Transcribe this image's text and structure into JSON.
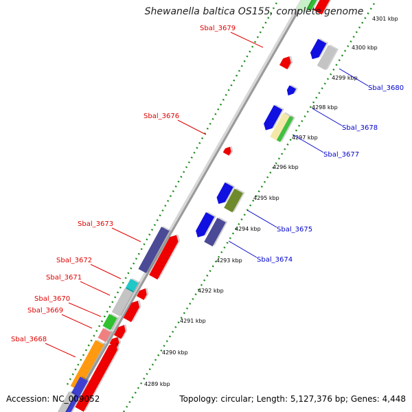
{
  "title": "Shewanella baltica OS155, complete genome",
  "footer": {
    "accession": "Accession: NC_009052",
    "summary": "Topology: circular; Length: 5,127,376 bp; Genes: 4,448"
  },
  "colors": {
    "backbone": "#9a9a9a",
    "tick_dots": "#1a8a1a",
    "forward_label": "#e00000",
    "reverse_label": "#0000cc"
  },
  "axis": {
    "ticks": [
      {
        "label": "4289 kbp",
        "kbp": 4289
      },
      {
        "label": "4290 kbp",
        "kbp": 4290
      },
      {
        "label": "4291 kbp",
        "kbp": 4291
      },
      {
        "label": "4292 kbp",
        "kbp": 4292
      },
      {
        "label": "4293 kbp",
        "kbp": 4293
      },
      {
        "label": "4294 kbp",
        "kbp": 4294
      },
      {
        "label": "4295 kbp",
        "kbp": 4295
      },
      {
        "label": "4296 kbp",
        "kbp": 4296
      },
      {
        "label": "4297 kbp",
        "kbp": 4297
      },
      {
        "label": "4298 kbp",
        "kbp": 4298
      },
      {
        "label": "4299 kbp",
        "kbp": 4299
      },
      {
        "label": "4300 kbp",
        "kbp": 4300
      },
      {
        "label": "4301 kbp",
        "kbp": 4301
      }
    ]
  },
  "gene_labels": {
    "forward": [
      {
        "name": "Sbal_3679"
      },
      {
        "name": "Sbal_3676"
      },
      {
        "name": "Sbal_3673"
      },
      {
        "name": "Sbal_3672"
      },
      {
        "name": "Sbal_3671"
      },
      {
        "name": "Sbal_3670"
      },
      {
        "name": "Sbal_3669"
      },
      {
        "name": "Sbal_3668"
      }
    ],
    "reverse": [
      {
        "name": "Sbal_3680"
      },
      {
        "name": "Sbal_3678"
      },
      {
        "name": "Sbal_3677"
      },
      {
        "name": "Sbal_3675"
      },
      {
        "name": "Sbal_3674"
      }
    ]
  }
}
